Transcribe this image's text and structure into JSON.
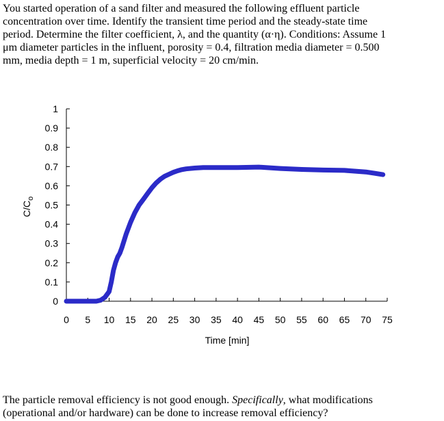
{
  "problem": {
    "line1": "You started operation of a sand filter and measured the following effluent particle",
    "line2": "concentration over time.  Identify the transient time period and the steady-state time",
    "line3": "period.  Determine the filter coefficient, λ, and the quantity (α·η).  Conditions: Assume 1",
    "line4": "μm diameter particles in the influent, porosity = 0.4, filtration media diameter = 0.500",
    "line5": "mm, media depth = 1 m, superficial velocity = 20 cm/min."
  },
  "footer": {
    "line1": "The particle removal efficiency is not good enough. ",
    "line1_em": "Specifically",
    "line1_end": ", what modifications",
    "line2": "(operational and/or hardware) can be done to increase removal efficiency?"
  },
  "colors": {
    "series": "#2b2bc8",
    "axis": "#000000"
  },
  "chart_data": {
    "type": "line",
    "xlabel": "Time [min]",
    "ylabel_main": "C/C",
    "ylabel_sub": "o",
    "xlim": [
      0,
      75
    ],
    "ylim": [
      0,
      1
    ],
    "xticks": [
      "0",
      "5",
      "10",
      "15",
      "20",
      "25",
      "30",
      "35",
      "40",
      "45",
      "50",
      "55",
      "60",
      "65",
      "70",
      "75"
    ],
    "yticks": [
      "0",
      "0.1",
      "0.2",
      "0.3",
      "0.4",
      "0.5",
      "0.6",
      "0.7",
      "0.8",
      "0.9",
      "1"
    ],
    "grid": false,
    "series": [
      {
        "x": [
          0,
          2,
          4,
          6,
          7,
          8,
          9,
          10,
          10.5,
          11,
          11.5,
          12,
          12.5,
          13,
          14,
          15,
          16,
          17,
          18,
          19,
          20,
          21,
          22,
          23,
          24,
          25,
          26,
          27,
          28,
          30,
          32,
          35,
          40,
          45,
          50,
          55,
          60,
          65,
          70,
          72,
          74
        ],
        "y": [
          0,
          0,
          0,
          0,
          0,
          0.005,
          0.02,
          0.05,
          0.1,
          0.16,
          0.2,
          0.23,
          0.25,
          0.28,
          0.35,
          0.41,
          0.46,
          0.5,
          0.53,
          0.56,
          0.59,
          0.615,
          0.635,
          0.65,
          0.66,
          0.67,
          0.678,
          0.684,
          0.688,
          0.692,
          0.695,
          0.695,
          0.695,
          0.697,
          0.69,
          0.685,
          0.682,
          0.68,
          0.672,
          0.665,
          0.658
        ]
      }
    ]
  }
}
